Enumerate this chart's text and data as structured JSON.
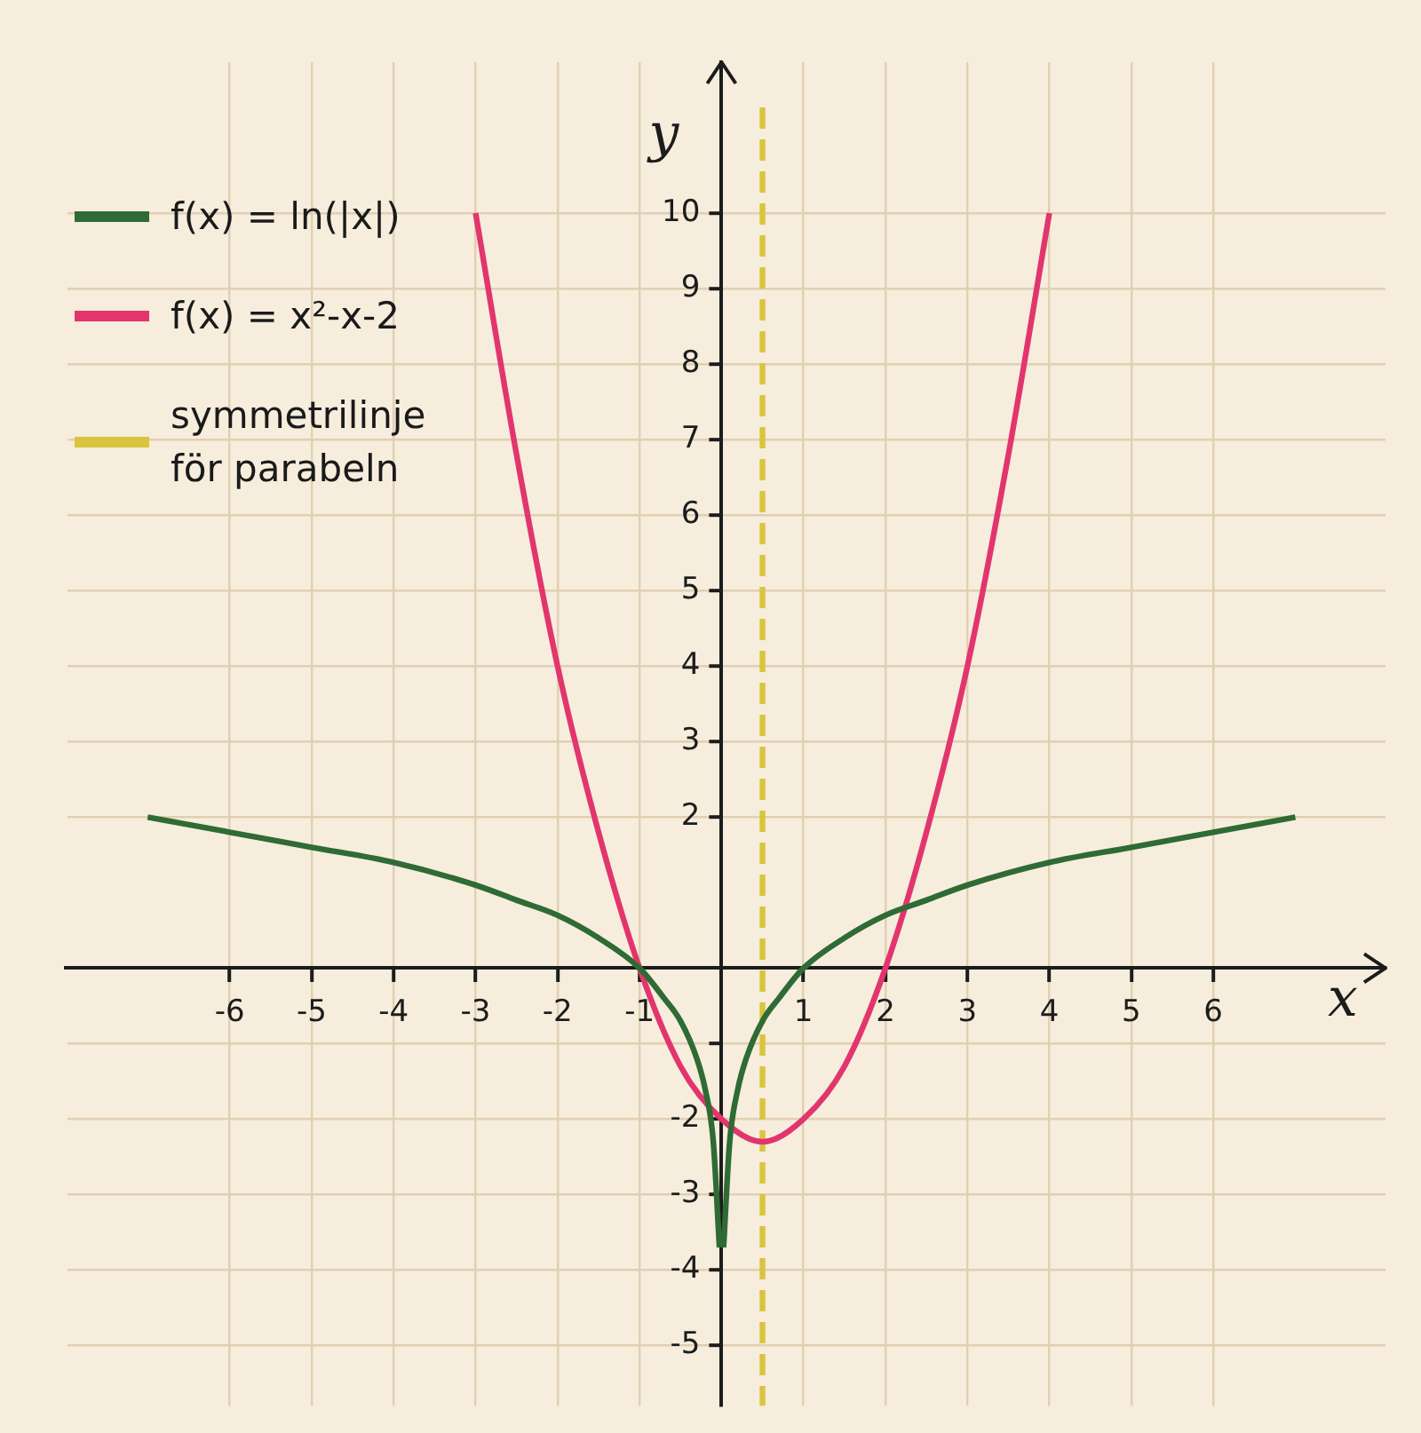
{
  "chart_data": {
    "type": "line",
    "xlabel": "x",
    "ylabel": "y",
    "xlim": [
      -8,
      8.1
    ],
    "ylim": [
      -5.8,
      12
    ],
    "xticks": [
      -6,
      -5,
      -4,
      -3,
      -2,
      -1,
      1,
      2,
      3,
      4,
      5,
      6
    ],
    "yticks": [
      -5,
      -4,
      -3,
      -2,
      {
        "value": -1,
        "label": null
      },
      2,
      3,
      4,
      5,
      6,
      7,
      8,
      9,
      10
    ],
    "grid": true,
    "legend": "top left",
    "marker": "none",
    "series": [
      {
        "name": "f(x) = ln(|x|)",
        "color": "#2f6b34",
        "x": [
          -7,
          -6,
          -5,
          -4,
          -3,
          -2.5,
          -2,
          -1.5,
          -1,
          -0.7,
          -0.5,
          -0.3,
          -0.2,
          -0.1,
          -0.025,
          0,
          0.025,
          0.1,
          0.2,
          0.3,
          0.5,
          0.7,
          1,
          1.5,
          2,
          2.5,
          3,
          4,
          5,
          6,
          7
        ],
        "values": [
          2.0,
          1.8,
          1.6,
          1.4,
          1.1,
          0.9,
          0.7,
          0.4,
          0,
          -0.4,
          -0.7,
          -1.2,
          -1.6,
          -2.3,
          -3.7,
          null,
          -3.7,
          -2.3,
          -1.6,
          -1.2,
          -0.7,
          -0.4,
          0,
          0.4,
          0.7,
          0.9,
          1.1,
          1.4,
          1.6,
          1.8,
          2.0
        ]
      },
      {
        "name": "f(x) = x²-x-2",
        "color": "#e2356e",
        "x": [
          -3,
          -2.5,
          -2,
          -1.5,
          -1,
          -0.5,
          0,
          0.5,
          1,
          1.5,
          2,
          2.5,
          3,
          3.5,
          4
        ],
        "values": [
          10,
          6.8,
          4,
          1.8,
          0,
          -1.3,
          -2,
          -2.3,
          -2,
          -1.3,
          0,
          1.8,
          4,
          6.8,
          10
        ]
      },
      {
        "name": "symmetrilinje för parabeln",
        "color": "#d9c53c",
        "line_style": "dashed",
        "x": [
          0.5,
          0.5
        ],
        "values": [
          11.4,
          -5.8
        ]
      }
    ]
  }
}
